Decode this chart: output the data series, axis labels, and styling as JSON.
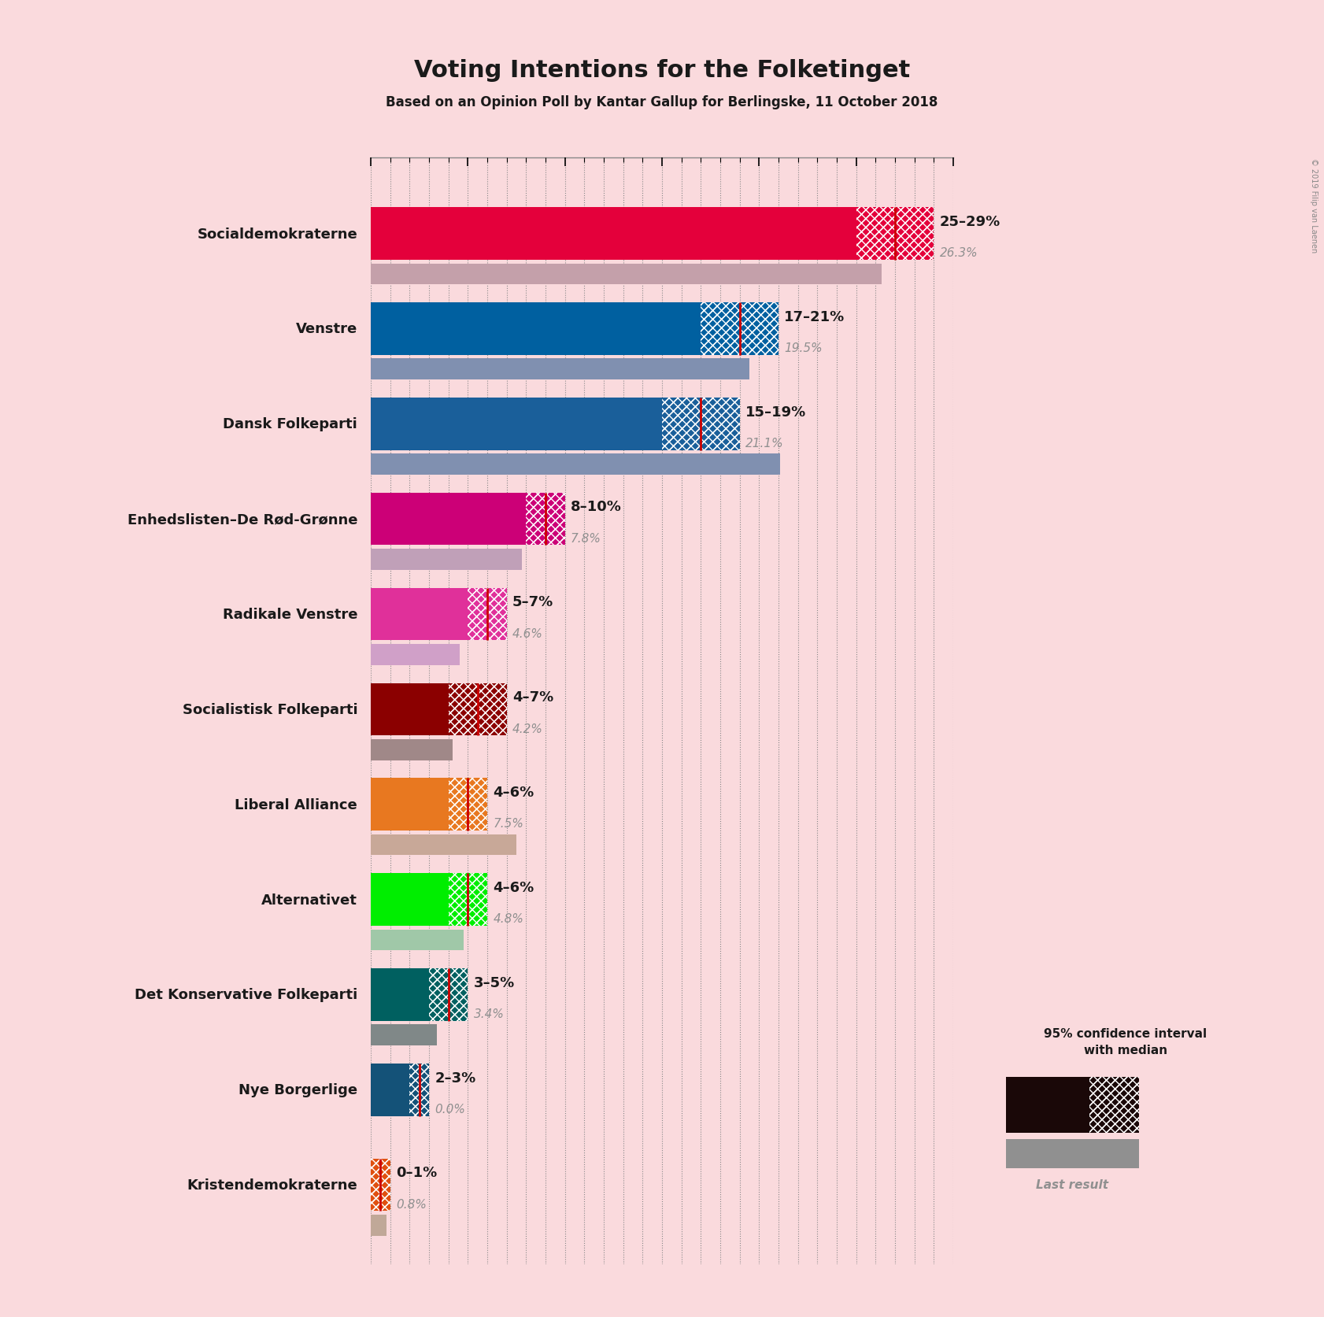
{
  "title": "Voting Intentions for the Folketinget",
  "subtitle": "Based on an Opinion Poll by Kantar Gallup for Berlingske, 11 October 2018",
  "copyright": "© 2019 Filip van Laenen",
  "background_color": "#fadadd",
  "parties": [
    {
      "name": "Socialdemokraterne",
      "low": 25,
      "high": 29,
      "median": 27,
      "last": 26.3,
      "color": "#e4003b",
      "last_color": "#c4a0aa",
      "label": "25–29%",
      "last_label": "26.3%"
    },
    {
      "name": "Venstre",
      "low": 17,
      "high": 21,
      "median": 19,
      "last": 19.5,
      "color": "#0060a0",
      "last_color": "#8090b0",
      "label": "17–21%",
      "last_label": "19.5%"
    },
    {
      "name": "Dansk Folkeparti",
      "low": 15,
      "high": 19,
      "median": 17,
      "last": 21.1,
      "color": "#1a5f9a",
      "last_color": "#8090b0",
      "label": "15–19%",
      "last_label": "21.1%"
    },
    {
      "name": "Enhedslisten–De Rød-Grønne",
      "low": 8,
      "high": 10,
      "median": 9,
      "last": 7.8,
      "color": "#cc0077",
      "last_color": "#c0a0b8",
      "label": "8–10%",
      "last_label": "7.8%"
    },
    {
      "name": "Radikale Venstre",
      "low": 5,
      "high": 7,
      "median": 6,
      "last": 4.6,
      "color": "#e0309a",
      "last_color": "#d0a0c8",
      "label": "5–7%",
      "last_label": "4.6%"
    },
    {
      "name": "Socialistisk Folkeparti",
      "low": 4,
      "high": 7,
      "median": 5.5,
      "last": 4.2,
      "color": "#8b0000",
      "last_color": "#a08888",
      "label": "4–7%",
      "last_label": "4.2%"
    },
    {
      "name": "Liberal Alliance",
      "low": 4,
      "high": 6,
      "median": 5,
      "last": 7.5,
      "color": "#e87820",
      "last_color": "#c8a898",
      "label": "4–6%",
      "last_label": "7.5%"
    },
    {
      "name": "Alternativet",
      "low": 4,
      "high": 6,
      "median": 5,
      "last": 4.8,
      "color": "#00ee00",
      "last_color": "#a0c8a8",
      "label": "4–6%",
      "last_label": "4.8%"
    },
    {
      "name": "Det Konservative Folkeparti",
      "low": 3,
      "high": 5,
      "median": 4,
      "last": 3.4,
      "color": "#006060",
      "last_color": "#808888",
      "label": "3–5%",
      "last_label": "3.4%"
    },
    {
      "name": "Nye Borgerlige",
      "low": 2,
      "high": 3,
      "median": 2.5,
      "last": 0.0,
      "color": "#145278",
      "last_color": "#888888",
      "label": "2–3%",
      "last_label": "0.0%"
    },
    {
      "name": "Kristendemokraterne",
      "low": 0,
      "high": 1,
      "median": 0.5,
      "last": 0.8,
      "color": "#e05010",
      "last_color": "#c0a898",
      "label": "0–1%",
      "last_label": "0.8%"
    }
  ],
  "xmax": 30,
  "median_line_color": "#cc0000",
  "grid_color": "#888888",
  "legend_ci_color": "#1a0808",
  "legend_last_color": "#909090"
}
